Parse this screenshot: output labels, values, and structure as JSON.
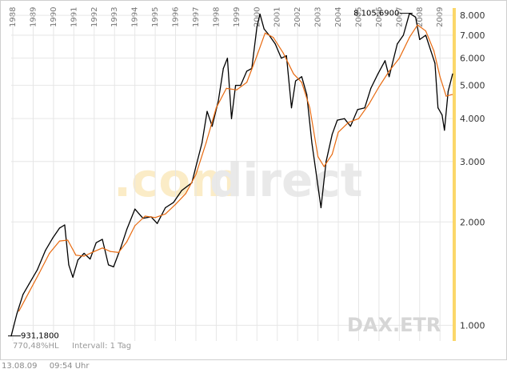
{
  "chart_data": {
    "type": "line",
    "scale": "log",
    "ylim": [
      900,
      8400
    ],
    "x_range": [
      1987.92,
      2009.62
    ],
    "y_ticks": [
      "1.000",
      "2.000",
      "3.000",
      "4.000",
      "5.000",
      "6.000",
      "7.000",
      "8.000"
    ],
    "y_tick_values": [
      1000,
      2000,
      3000,
      4000,
      5000,
      6000,
      7000,
      8000
    ],
    "year_labels": [
      "1988",
      "1989",
      "1990",
      "1991",
      "1992",
      "1993",
      "1994",
      "1995",
      "1996",
      "1997",
      "1998",
      "1999",
      "2000",
      "2001",
      "2002",
      "2003",
      "2004",
      "2005",
      "2006",
      "2007",
      "2008",
      "2009"
    ],
    "series": [
      {
        "color": "#000000",
        "points": [
          [
            1987.92,
            931
          ],
          [
            1988.2,
            1080
          ],
          [
            1988.5,
            1230
          ],
          [
            1988.8,
            1320
          ],
          [
            1989.2,
            1450
          ],
          [
            1989.6,
            1650
          ],
          [
            1989.95,
            1790
          ],
          [
            1990.3,
            1920
          ],
          [
            1990.55,
            1960
          ],
          [
            1990.75,
            1500
          ],
          [
            1990.95,
            1380
          ],
          [
            1991.2,
            1550
          ],
          [
            1991.5,
            1620
          ],
          [
            1991.8,
            1560
          ],
          [
            1992.1,
            1740
          ],
          [
            1992.4,
            1780
          ],
          [
            1992.7,
            1500
          ],
          [
            1992.95,
            1480
          ],
          [
            1993.3,
            1680
          ],
          [
            1993.6,
            1900
          ],
          [
            1994.0,
            2180
          ],
          [
            1994.4,
            2050
          ],
          [
            1994.8,
            2070
          ],
          [
            1995.1,
            1980
          ],
          [
            1995.5,
            2200
          ],
          [
            1995.9,
            2280
          ],
          [
            1996.3,
            2470
          ],
          [
            1996.8,
            2600
          ],
          [
            1997.0,
            2900
          ],
          [
            1997.3,
            3400
          ],
          [
            1997.55,
            4200
          ],
          [
            1997.8,
            3800
          ],
          [
            1998.1,
            4500
          ],
          [
            1998.35,
            5600
          ],
          [
            1998.55,
            6000
          ],
          [
            1998.75,
            4000
          ],
          [
            1998.95,
            5000
          ],
          [
            1999.2,
            5000
          ],
          [
            1999.5,
            5500
          ],
          [
            1999.75,
            5600
          ],
          [
            2000.0,
            7400
          ],
          [
            2000.15,
            8065
          ],
          [
            2000.35,
            7300
          ],
          [
            2000.6,
            7000
          ],
          [
            2000.9,
            6600
          ],
          [
            2001.2,
            6000
          ],
          [
            2001.45,
            6100
          ],
          [
            2001.7,
            4300
          ],
          [
            2001.9,
            5150
          ],
          [
            2002.2,
            5300
          ],
          [
            2002.45,
            4700
          ],
          [
            2002.7,
            3400
          ],
          [
            2002.9,
            2800
          ],
          [
            2003.15,
            2200
          ],
          [
            2003.4,
            3000
          ],
          [
            2003.7,
            3600
          ],
          [
            2003.95,
            3960
          ],
          [
            2004.3,
            4000
          ],
          [
            2004.6,
            3800
          ],
          [
            2004.95,
            4250
          ],
          [
            2005.3,
            4300
          ],
          [
            2005.6,
            4900
          ],
          [
            2005.95,
            5400
          ],
          [
            2006.3,
            5900
          ],
          [
            2006.5,
            5300
          ],
          [
            2006.9,
            6600
          ],
          [
            2007.2,
            7000
          ],
          [
            2007.5,
            8106
          ],
          [
            2007.8,
            7900
          ],
          [
            2008.0,
            6800
          ],
          [
            2008.3,
            7000
          ],
          [
            2008.55,
            6300
          ],
          [
            2008.75,
            5800
          ],
          [
            2008.9,
            4300
          ],
          [
            2009.1,
            4100
          ],
          [
            2009.22,
            3700
          ],
          [
            2009.4,
            4800
          ],
          [
            2009.62,
            5400
          ]
        ]
      },
      {
        "color": "#e86a10",
        "points": [
          [
            1988.3,
            1100
          ],
          [
            1988.8,
            1250
          ],
          [
            1989.3,
            1420
          ],
          [
            1989.8,
            1620
          ],
          [
            1990.3,
            1760
          ],
          [
            1990.7,
            1770
          ],
          [
            1991.1,
            1600
          ],
          [
            1991.5,
            1590
          ],
          [
            1992.0,
            1640
          ],
          [
            1992.4,
            1680
          ],
          [
            1992.8,
            1640
          ],
          [
            1993.2,
            1630
          ],
          [
            1993.6,
            1750
          ],
          [
            1994.0,
            1950
          ],
          [
            1994.5,
            2080
          ],
          [
            1995.0,
            2060
          ],
          [
            1995.5,
            2110
          ],
          [
            1996.0,
            2250
          ],
          [
            1996.5,
            2420
          ],
          [
            1997.0,
            2750
          ],
          [
            1997.5,
            3400
          ],
          [
            1998.0,
            4300
          ],
          [
            1998.5,
            4900
          ],
          [
            1999.0,
            4850
          ],
          [
            1999.5,
            5100
          ],
          [
            2000.0,
            6100
          ],
          [
            2000.4,
            7100
          ],
          [
            2000.8,
            6900
          ],
          [
            2001.3,
            6200
          ],
          [
            2001.8,
            5400
          ],
          [
            2002.2,
            5100
          ],
          [
            2002.6,
            4300
          ],
          [
            2003.0,
            3100
          ],
          [
            2003.3,
            2900
          ],
          [
            2003.7,
            3150
          ],
          [
            2004.0,
            3650
          ],
          [
            2004.5,
            3900
          ],
          [
            2005.0,
            4000
          ],
          [
            2005.5,
            4400
          ],
          [
            2006.0,
            4950
          ],
          [
            2006.5,
            5500
          ],
          [
            2007.0,
            6000
          ],
          [
            2007.5,
            6900
          ],
          [
            2007.9,
            7500
          ],
          [
            2008.3,
            7200
          ],
          [
            2008.7,
            6300
          ],
          [
            2009.0,
            5300
          ],
          [
            2009.3,
            4650
          ],
          [
            2009.6,
            4700
          ]
        ]
      }
    ],
    "high_label": "8.105,6900",
    "low_label": "931,1800",
    "high_point": [
      2007.5,
      8106
    ],
    "low_point": [
      1987.92,
      931
    ],
    "info_left": "770,48%HL",
    "info_right": "Intervall: 1 Tag",
    "symbol": "DAX.ETR",
    "watermark_a": ".com",
    "watermark_b": "direct"
  },
  "footer": {
    "date": "13.08.09",
    "time": "09:54 Uhr"
  }
}
